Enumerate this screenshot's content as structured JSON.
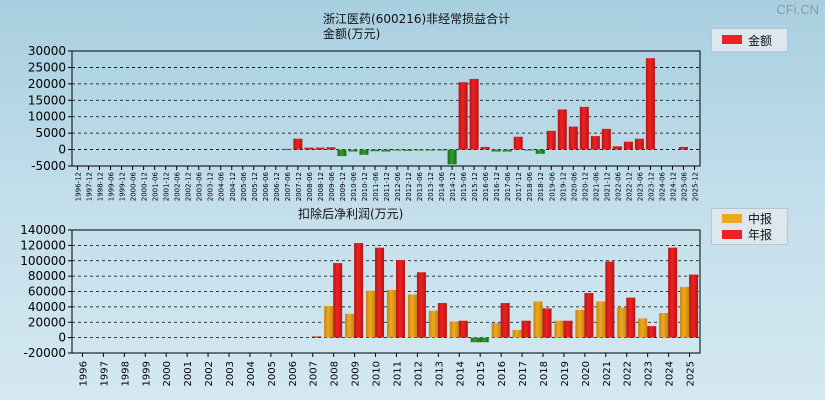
{
  "watermark": "CFi.CN",
  "colors": {
    "red": "#ee2222",
    "red_dark": "#b81414",
    "green": "#2e9b2e",
    "green_dark": "#1c6b1c",
    "orange": "#f0a820",
    "orange_dark": "#c4860c"
  },
  "chart_data": [
    {
      "type": "bar",
      "title": "浙江医药(600216)非经常损益合计",
      "subtitle": "金额(万元)",
      "legend": [
        "金额"
      ],
      "ylim": [
        -5000,
        30000
      ],
      "yticks": [
        -5000,
        0,
        5000,
        10000,
        15000,
        20000,
        25000,
        30000
      ],
      "categories": [
        "1996-12",
        "1997-12",
        "1998-12",
        "1999-06",
        "1999-12",
        "2000-06",
        "2000-12",
        "2001-06",
        "2001-12",
        "2002-06",
        "2002-12",
        "2003-06",
        "2003-12",
        "2004-06",
        "2004-12",
        "2005-06",
        "2005-12",
        "2006-06",
        "2006-12",
        "2007-06",
        "2007-12",
        "2008-06",
        "2008-12",
        "2009-06",
        "2009-12",
        "2010-06",
        "2010-12",
        "2011-06",
        "2011-12",
        "2012-06",
        "2012-12",
        "2013-06",
        "2013-12",
        "2014-06",
        "2014-12",
        "2015-06",
        "2015-12",
        "2016-06",
        "2016-12",
        "2017-06",
        "2017-12",
        "2018-06",
        "2018-12",
        "2019-06",
        "2019-12",
        "2020-06",
        "2020-12",
        "2021-06",
        "2021-12",
        "2022-06",
        "2022-12",
        "2023-06",
        "2023-12",
        "2024-06",
        "2024-12",
        "2025-06",
        "2025-12"
      ],
      "values": [
        0,
        0,
        0,
        0,
        0,
        0,
        0,
        0,
        0,
        0,
        0,
        0,
        0,
        0,
        0,
        0,
        0,
        0,
        0,
        200,
        3300,
        600,
        600,
        700,
        -2000,
        -600,
        -1600,
        -500,
        -600,
        -300,
        -400,
        -200,
        -300,
        -300,
        -4500,
        20500,
        21500,
        800,
        -600,
        -600,
        3900,
        -200,
        -1300,
        5700,
        12200,
        7000,
        13000,
        4100,
        6300,
        1000,
        2400,
        3300,
        27800,
        0,
        0,
        800,
        0
      ]
    },
    {
      "type": "bar",
      "title": "扣除后净利润(万元)",
      "legend": [
        "中报",
        "年报"
      ],
      "ylim": [
        -20000,
        140000
      ],
      "yticks": [
        -20000,
        0,
        20000,
        40000,
        60000,
        80000,
        100000,
        120000,
        140000
      ],
      "categories": [
        "1996",
        "1997",
        "1998",
        "1999",
        "2000",
        "2001",
        "2002",
        "2003",
        "2004",
        "2005",
        "2006",
        "2007",
        "2008",
        "2009",
        "2010",
        "2011",
        "2012",
        "2013",
        "2014",
        "2015",
        "2016",
        "2017",
        "2018",
        "2019",
        "2020",
        "2021",
        "2022",
        "2023",
        "2024",
        "2025"
      ],
      "series": [
        {
          "name": "中报",
          "values": [
            0,
            0,
            0,
            0,
            0,
            0,
            0,
            0,
            0,
            0,
            0,
            0,
            41000,
            31000,
            61000,
            62000,
            56000,
            35000,
            21000,
            -6000,
            19000,
            10000,
            47000,
            22000,
            36000,
            47000,
            39000,
            25000,
            32000,
            66000
          ]
        },
        {
          "name": "年报",
          "values": [
            0,
            0,
            0,
            0,
            0,
            0,
            0,
            0,
            0,
            0,
            0,
            1500,
            97000,
            123000,
            117000,
            101000,
            85000,
            45000,
            22000,
            -6000,
            45000,
            22000,
            38000,
            22000,
            58000,
            99000,
            52000,
            15000,
            117000,
            82000
          ]
        }
      ]
    }
  ]
}
